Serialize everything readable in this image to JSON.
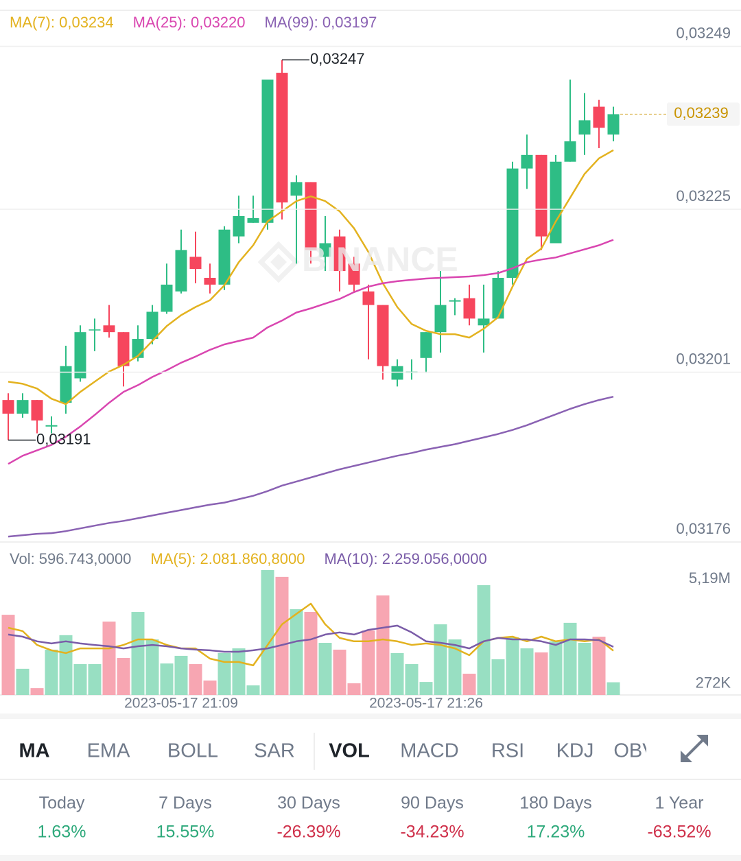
{
  "chart_data": [
    {
      "type": "candlestick",
      "open": [
        0.031969,
        0.031949,
        0.031969,
        0.03193,
        0.031965,
        0.032001,
        0.032072,
        0.032079,
        0.032069,
        0.032031,
        0.032059,
        0.032099,
        0.032129,
        0.03218,
        0.032149,
        0.032139,
        0.03221,
        0.03223,
        0.03223,
        0.032451,
        0.03227,
        0.03229,
        0.03218,
        0.03221,
        0.03217,
        0.032129,
        0.032109,
        0.031999,
        0.032009,
        0.032031,
        0.032069,
        0.032114,
        0.032119,
        0.032079,
        0.032089,
        0.032149,
        0.03231,
        0.03233,
        0.0322,
        0.03232,
        0.03236,
        0.032401,
        0.03236
      ],
      "high": [
        0.031979,
        0.031979,
        0.031969,
        0.031945,
        0.032049,
        0.032079,
        0.032089,
        0.032109,
        0.032069,
        0.032079,
        0.032109,
        0.03217,
        0.03222,
        0.032217,
        0.03217,
        0.032225,
        0.03227,
        0.03227,
        0.032441,
        0.03247,
        0.0323,
        0.03229,
        0.03224,
        0.03222,
        0.03218,
        0.032139,
        0.032109,
        0.032029,
        0.032029,
        0.032069,
        0.032159,
        0.032119,
        0.032139,
        0.032139,
        0.032159,
        0.03232,
        0.03236,
        0.03233,
        0.03233,
        0.032441,
        0.032421,
        0.032411,
        0.032401
      ],
      "low": [
        0.03191,
        0.031943,
        0.03192,
        0.03192,
        0.031949,
        0.031996,
        0.032041,
        0.032061,
        0.031989,
        0.032026,
        0.032051,
        0.032096,
        0.032126,
        0.032141,
        0.032126,
        0.032131,
        0.0322,
        0.03223,
        0.03222,
        0.032235,
        0.03217,
        0.03217,
        0.032159,
        0.032129,
        0.032129,
        0.032029,
        0.031999,
        0.031989,
        0.031999,
        0.032009,
        0.032039,
        0.032094,
        0.032079,
        0.032039,
        0.032089,
        0.032139,
        0.03228,
        0.03219,
        0.0322,
        0.03232,
        0.03233,
        0.03234,
        0.03235
      ],
      "close": [
        0.031949,
        0.031969,
        0.031939,
        0.031932,
        0.032019,
        0.032069,
        0.032073,
        0.032069,
        0.032019,
        0.032059,
        0.032099,
        0.032139,
        0.03219,
        0.032162,
        0.032139,
        0.03222,
        0.03224,
        0.032237,
        0.032441,
        0.03226,
        0.03229,
        0.03219,
        0.0322,
        0.032159,
        0.032139,
        0.032109,
        0.032019,
        0.032019,
        0.032011,
        0.032069,
        0.032109,
        0.032116,
        0.032089,
        0.032089,
        0.032149,
        0.03231,
        0.03233,
        0.03221,
        0.03232,
        0.03235,
        0.032381,
        0.03237,
        0.03239
      ],
      "up_color": "#2ebd85",
      "down_color": "#f6465d",
      "lines": [
        {
          "name": "MA(7): 0,03234",
          "color": "#e3b21f",
          "values": [
            0.031996,
            0.031993,
            0.031986,
            0.031971,
            0.031963,
            0.031981,
            0.031996,
            0.032011,
            0.032021,
            0.032034,
            0.032056,
            0.032078,
            0.032094,
            0.032106,
            0.032116,
            0.032138,
            0.032172,
            0.032197,
            0.032232,
            0.032247,
            0.032262,
            0.032269,
            0.032262,
            0.032247,
            0.032222,
            0.032187,
            0.032141,
            0.032106,
            0.032081,
            0.032071,
            0.032066,
            0.032066,
            0.032061,
            0.032074,
            0.032091,
            0.032136,
            0.032177,
            0.032192,
            0.032232,
            0.032267,
            0.032302,
            0.032325,
            0.032337
          ]
        },
        {
          "name": "MA(25): 0,03220",
          "color": "#d946b0",
          "values": [
            0.031875,
            0.031887,
            0.031895,
            0.031903,
            0.031915,
            0.03193,
            0.031947,
            0.031965,
            0.031981,
            0.031991,
            0.032003,
            0.032013,
            0.032024,
            0.032033,
            0.032043,
            0.032051,
            0.032056,
            0.032061,
            0.032076,
            0.032086,
            0.032098,
            0.032104,
            0.032111,
            0.032118,
            0.032128,
            0.032136,
            0.032141,
            0.032144,
            0.032146,
            0.032148,
            0.032149,
            0.03215,
            0.032151,
            0.032153,
            0.032156,
            0.032163,
            0.032172,
            0.032176,
            0.032179,
            0.032185,
            0.032191,
            0.032197,
            0.032205
          ]
        },
        {
          "name": "MA(99): 0,03197",
          "color": "#8a62b3",
          "values": [
            0.031768,
            0.03177,
            0.031772,
            0.031773,
            0.031776,
            0.03178,
            0.031784,
            0.031788,
            0.031791,
            0.031795,
            0.031799,
            0.031803,
            0.031807,
            0.031811,
            0.031815,
            0.031818,
            0.031823,
            0.031828,
            0.031835,
            0.031843,
            0.031849,
            0.031855,
            0.031861,
            0.031867,
            0.031872,
            0.031877,
            0.031882,
            0.031887,
            0.031891,
            0.031896,
            0.0319,
            0.031904,
            0.031909,
            0.031914,
            0.031919,
            0.031925,
            0.031932,
            0.03194,
            0.031948,
            0.031956,
            0.031963,
            0.031969,
            0.031974
          ]
        }
      ],
      "ylim": [
        0.03176,
        0.032543
      ],
      "yticks": [
        {
          "value": 0.03249,
          "label": "0,03249"
        },
        {
          "value": 0.03225,
          "label": "0,03225"
        },
        {
          "value": 0.03201,
          "label": "0,03201"
        },
        {
          "value": 0.03176,
          "label": "0,03176"
        }
      ],
      "grid": true,
      "annotations": [
        {
          "text": "0,03247",
          "value": 0.03247
        },
        {
          "text": "0,03191",
          "value": 0.03191
        }
      ],
      "last_price": {
        "text": "0,03239",
        "value": 0.03239,
        "color": "#c99400"
      },
      "watermark": "BINANCE"
    },
    {
      "type": "bar",
      "name": "Vol: 596.743,0000",
      "categories": [
        null,
        null,
        null,
        null,
        null,
        null,
        null,
        null,
        null,
        null,
        null,
        null,
        "2023-05-17 21:09",
        null,
        null,
        null,
        null,
        null,
        null,
        null,
        null,
        null,
        null,
        null,
        null,
        null,
        null,
        null,
        null,
        "2023-05-17 21:26",
        null,
        null,
        null,
        null,
        null,
        null,
        null,
        null,
        null,
        null,
        null,
        null,
        null
      ],
      "values": [
        3770000,
        1230000,
        320000,
        2130000,
        2810000,
        1450000,
        1450000,
        3450000,
        1740000,
        3900000,
        2610000,
        1480000,
        1840000,
        1450000,
        680000,
        1970000,
        2190000,
        450000,
        5870000,
        5550000,
        4030000,
        3900000,
        2450000,
        2130000,
        550000,
        3030000,
        4680000,
        1970000,
        1450000,
        610000,
        3320000,
        2610000,
        1000000,
        5160000,
        1680000,
        2710000,
        2190000,
        2000000,
        2520000,
        3390000,
        2450000,
        2740000,
        596743
      ],
      "up_color": "#98dfc2",
      "down_color": "#f7a6b2",
      "lines": [
        {
          "name": "MA(5): 2.081.860,8000",
          "color": "#e3b21f",
          "values": [
            3160000,
            3000000,
            2350000,
            2100000,
            1970000,
            2190000,
            2190000,
            2190000,
            2350000,
            2610000,
            2610000,
            2350000,
            2190000,
            2190000,
            1710000,
            1550000,
            1550000,
            1390000,
            2350000,
            3320000,
            3810000,
            4290000,
            3320000,
            2680000,
            2520000,
            2520000,
            2610000,
            2520000,
            2350000,
            2420000,
            2350000,
            2190000,
            1870000,
            2520000,
            2680000,
            2740000,
            2520000,
            2740000,
            2520000,
            2610000,
            2520000,
            2610000,
            2080000
          ]
        },
        {
          "name": "MA(10): 2.259.056,0000",
          "color": "#7a5ca8",
          "values": [
            2840000,
            2740000,
            2520000,
            2420000,
            2520000,
            2420000,
            2350000,
            2290000,
            2190000,
            2290000,
            2350000,
            2290000,
            2190000,
            2130000,
            2100000,
            2030000,
            2030000,
            2100000,
            2190000,
            2350000,
            2520000,
            2610000,
            2840000,
            2940000,
            2840000,
            3060000,
            3160000,
            3260000,
            2940000,
            2520000,
            2450000,
            2350000,
            2190000,
            2520000,
            2680000,
            2610000,
            2610000,
            2520000,
            2350000,
            2610000,
            2610000,
            2580000,
            2260000
          ]
        }
      ],
      "ylim": [
        0,
        5900000
      ],
      "yticks": [
        {
          "value": 5190000,
          "label": "5,19M"
        },
        {
          "value": 272000,
          "label": "272K"
        }
      ],
      "grid": false
    }
  ],
  "indicator_tabs": [
    {
      "label": "MA",
      "active": true
    },
    {
      "label": "EMA",
      "active": false
    },
    {
      "label": "BOLL",
      "active": false
    },
    {
      "label": "SAR",
      "active": false
    },
    {
      "label": "VOL",
      "active": true
    },
    {
      "label": "MACD",
      "active": false
    },
    {
      "label": "RSI",
      "active": false
    },
    {
      "label": "KDJ",
      "active": false
    },
    {
      "label": "OBV",
      "active": false
    }
  ],
  "performance": [
    {
      "label": "Today",
      "value": "1.63%"
    },
    {
      "label": "7 Days",
      "value": "15.55%"
    },
    {
      "label": "30 Days",
      "value": "-26.39%"
    },
    {
      "label": "90 Days",
      "value": "-34.23%"
    },
    {
      "label": "180 Days",
      "value": "17.23%"
    },
    {
      "label": "1 Year",
      "value": "-63.52%"
    }
  ]
}
